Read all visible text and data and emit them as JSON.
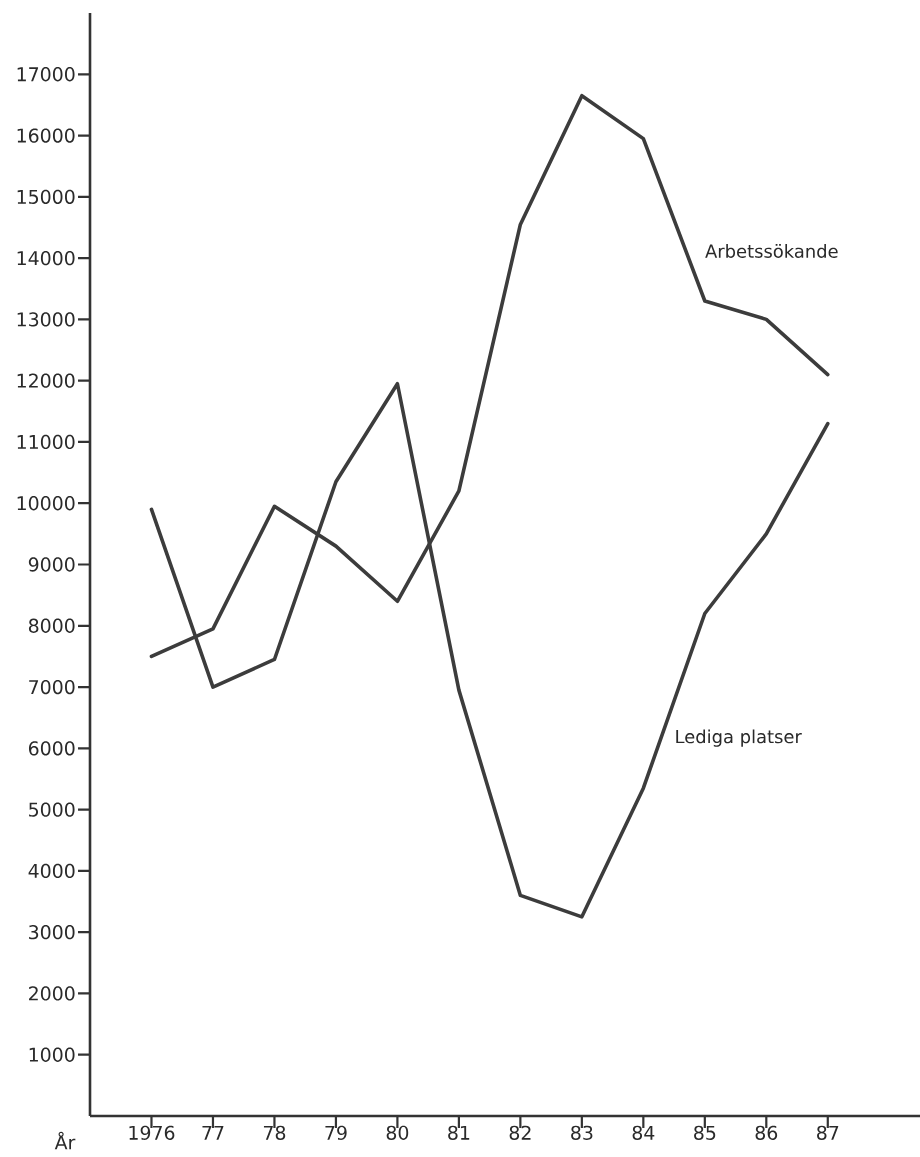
{
  "chart_data": {
    "type": "line",
    "xlabel": "År",
    "x": [
      1976,
      1977,
      1978,
      1979,
      1980,
      1981,
      1982,
      1983,
      1984,
      1985,
      1986,
      1987
    ],
    "series": [
      {
        "name": "Arbetssökande",
        "color": "#3c3c3c",
        "values": [
          7500,
          7950,
          9950,
          9300,
          8400,
          10200,
          14550,
          16650,
          15950,
          13300,
          13000,
          12100
        ]
      },
      {
        "name": "Lediga platser",
        "color": "#3c3c3c",
        "values": [
          9900,
          7000,
          7450,
          10350,
          11950,
          6950,
          3600,
          3250,
          5350,
          8200,
          9500,
          11300
        ]
      }
    ],
    "xlim": [
      1975,
      1988.5
    ],
    "ylim": [
      0,
      18000
    ],
    "xticks": [
      {
        "value": 1976,
        "label": "1976"
      },
      {
        "value": 1977,
        "label": "77"
      },
      {
        "value": 1978,
        "label": "78"
      },
      {
        "value": 1979,
        "label": "79"
      },
      {
        "value": 1980,
        "label": "80"
      },
      {
        "value": 1981,
        "label": "81"
      },
      {
        "value": 1982,
        "label": "82"
      },
      {
        "value": 1983,
        "label": "83"
      },
      {
        "value": 1984,
        "label": "84"
      },
      {
        "value": 1985,
        "label": "85"
      },
      {
        "value": 1986,
        "label": "86"
      },
      {
        "value": 1987,
        "label": "87"
      }
    ],
    "yticks": [
      1000,
      2000,
      3000,
      4000,
      5000,
      6000,
      7000,
      8000,
      9000,
      10000,
      11000,
      12000,
      13000,
      14000,
      15000,
      16000,
      17000
    ],
    "marker": "none",
    "line_style": "solid"
  }
}
